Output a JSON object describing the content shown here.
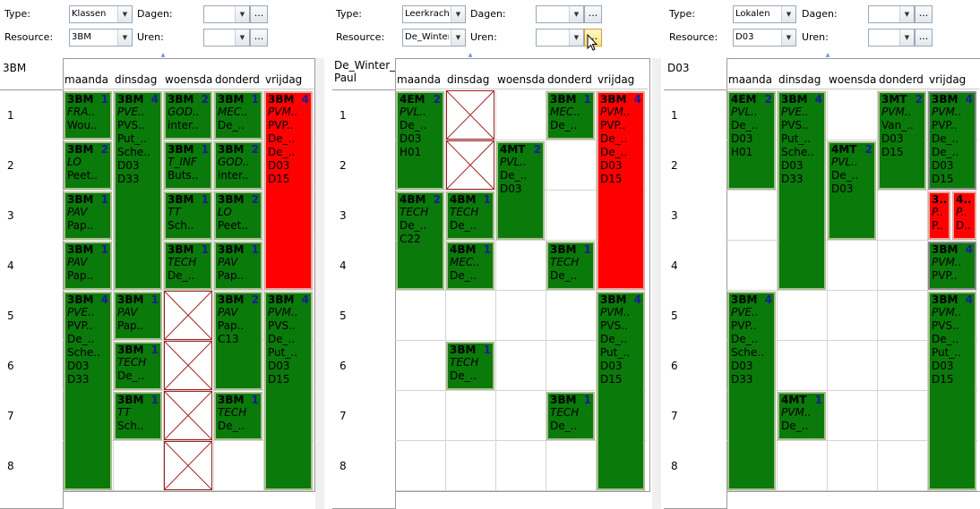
{
  "panels": [
    {
      "type_label": "Type:",
      "type_value": "Klassen",
      "dagen_label": "Dagen:",
      "resource_label": "Resource:",
      "resource_value": "3BM",
      "uren_label": "Uren:",
      "dots": "...",
      "title": "3BM",
      "days": [
        "maanda",
        "dinsdag",
        "woensda",
        "donderd",
        "vrijdag"
      ],
      "periods": [
        "1",
        "2",
        "3",
        "4",
        "5",
        "6",
        "7",
        "8"
      ],
      "cards": [
        {
          "t": "3BM",
          "n": "1",
          "l2": "FRA..",
          "l3": "Wou..",
          "l4": "",
          "l5": "",
          "color": "g"
        },
        {
          "t": "3BM",
          "n": "2",
          "l2": "LO",
          "l3": "Peet..",
          "l4": "",
          "l5": "",
          "color": "g"
        },
        {
          "t": "3BM",
          "n": "1",
          "l2": "PAV",
          "l3": "Pap..",
          "l4": "",
          "l5": "",
          "color": "g"
        },
        {
          "t": "3BM",
          "n": "1",
          "l2": "PAV",
          "l3": "Pap..",
          "l4": "",
          "l5": "",
          "color": "g"
        },
        {
          "t": "3BM",
          "n": "4",
          "l2": "PVE..",
          "l3": "PVP..",
          "l4": "De_..",
          "l5": "Sche..",
          "l6": "D03",
          "l7": "D33",
          "color": "g"
        },
        {
          "t": "3BM",
          "n": "4",
          "l2": "PVE..",
          "l3": "PVS..",
          "l4": "Put_..",
          "l5": "Sche..",
          "l6": "D03",
          "l7": "D33",
          "color": "g"
        },
        {
          "t": "3BM",
          "n": "1",
          "l2": "PAV",
          "l3": "Pap..",
          "l4": "",
          "l5": "",
          "color": "g"
        },
        {
          "t": "3BM",
          "n": "1",
          "l2": "TECH",
          "l3": "De_..",
          "l4": "",
          "l5": "",
          "color": "g"
        },
        {
          "t": "3BM",
          "n": "1",
          "l2": "TT",
          "l3": "Sch..",
          "l4": "",
          "l5": "",
          "color": "g"
        },
        {
          "t": "3BM",
          "n": "2",
          "l2": "GOD..",
          "l3": "inter..",
          "l4": "",
          "l5": "",
          "color": "g"
        },
        {
          "t": "3BM",
          "n": "1",
          "l2": "T_INF",
          "l3": "Buts..",
          "l4": "",
          "l5": "",
          "color": "g"
        },
        {
          "t": "3BM",
          "n": "1",
          "l2": "TT",
          "l3": "Sch..",
          "l4": "",
          "l5": "",
          "color": "g"
        },
        {
          "t": "3BM",
          "n": "1",
          "l2": "TECH",
          "l3": "De_..",
          "l4": "",
          "l5": "",
          "color": "g"
        },
        {
          "t": "3BM",
          "n": "1",
          "l2": "MEC..",
          "l3": "De_..",
          "l4": "",
          "l5": "",
          "color": "g"
        },
        {
          "t": "3BM",
          "n": "2",
          "l2": "GOD..",
          "l3": "inter..",
          "l4": "",
          "l5": "",
          "color": "g"
        },
        {
          "t": "3BM",
          "n": "2",
          "l2": "LO",
          "l3": "Peet..",
          "l4": "",
          "l5": "",
          "color": "g"
        },
        {
          "t": "3BM",
          "n": "1",
          "l2": "PAV",
          "l3": "Pap..",
          "l4": "",
          "l5": "",
          "color": "g"
        },
        {
          "t": "3BM",
          "n": "2",
          "l2": "PAV",
          "l3": "Pap..",
          "l4": "C13",
          "l5": "",
          "color": "g"
        },
        {
          "t": "3BM",
          "n": "1",
          "l2": "TECH",
          "l3": "De_..",
          "l4": "",
          "l5": "",
          "color": "g"
        },
        {
          "t": "3BM",
          "n": "4",
          "l2": "PVM..",
          "l3": "PVP..",
          "l4": "De_..",
          "l5": "De_..",
          "l6": "D03",
          "l7": "D15",
          "color": "r"
        },
        {
          "t": "3BM",
          "n": "4",
          "l2": "PVM..",
          "l3": "PVS..",
          "l4": "De_..",
          "l5": "Put_..",
          "l6": "D03",
          "l7": "D15",
          "color": "g"
        }
      ]
    },
    {
      "type_label": "Type:",
      "type_value": "Leerkracht",
      "dagen_label": "Dagen:",
      "resource_label": "Resource:",
      "resource_value": "De_Winter",
      "uren_label": "Uren:",
      "dots": "...",
      "title": "De_Winter_\nPaul",
      "days": [
        "maanda",
        "dinsdag",
        "woensda",
        "donderd",
        "vrijdag"
      ],
      "periods": [
        "1",
        "2",
        "3",
        "4",
        "5",
        "6",
        "7",
        "8"
      ],
      "cards": [
        {
          "t": "4EM",
          "n": "2",
          "l2": "PVL..",
          "l3": "De_..",
          "l4": "D03",
          "l5": "H01",
          "color": "g"
        },
        {
          "t": "4BM",
          "n": "2",
          "l2": "TECH",
          "l3": "De_..",
          "l4": "C22",
          "l5": "",
          "color": "g"
        },
        {
          "t": "4BM",
          "n": "1",
          "l2": "TECH",
          "l3": "De_..",
          "l4": "",
          "l5": "",
          "color": "g"
        },
        {
          "t": "4BM",
          "n": "1",
          "l2": "MEC..",
          "l3": "De_..",
          "l4": "",
          "l5": "",
          "color": "g"
        },
        {
          "t": "3BM",
          "n": "1",
          "l2": "TECH",
          "l3": "De_..",
          "l4": "",
          "l5": "",
          "color": "g"
        },
        {
          "t": "4MT",
          "n": "2",
          "l2": "PVL..",
          "l3": "De_..",
          "l4": "D03",
          "l5": "",
          "color": "g"
        },
        {
          "t": "3BM",
          "n": "1",
          "l2": "MEC..",
          "l3": "De_..",
          "l4": "",
          "l5": "",
          "color": "g"
        },
        {
          "t": "3BM",
          "n": "1",
          "l2": "TECH",
          "l3": "De_..",
          "l4": "",
          "l5": "",
          "color": "g"
        },
        {
          "t": "3BM",
          "n": "1",
          "l2": "TECH",
          "l3": "De_..",
          "l4": "",
          "l5": "",
          "color": "g"
        },
        {
          "t": "3BM",
          "n": "4",
          "l2": "PVM..",
          "l3": "PVP..",
          "l4": "De_..",
          "l5": "De_..",
          "l6": "D03",
          "l7": "D15",
          "color": "r"
        },
        {
          "t": "3BM",
          "n": "4",
          "l2": "PVM..",
          "l3": "PVS..",
          "l4": "De_..",
          "l5": "Put_..",
          "l6": "D03",
          "l7": "D15",
          "color": "g"
        }
      ]
    },
    {
      "type_label": "Type:",
      "type_value": "Lokalen",
      "dagen_label": "Dagen:",
      "resource_label": "Resource:",
      "resource_value": "D03",
      "uren_label": "Uren:",
      "dots": "...",
      "title": "D03",
      "days": [
        "maanda",
        "dinsdag",
        "woensda",
        "donderd",
        "vrijdag"
      ],
      "periods": [
        "1",
        "2",
        "3",
        "4",
        "5",
        "6",
        "7",
        "8"
      ],
      "cards": [
        {
          "t": "4EM",
          "n": "2",
          "l2": "PVL..",
          "l3": "De_..",
          "l4": "D03",
          "l5": "H01",
          "color": "g"
        },
        {
          "t": "3BM",
          "n": "4",
          "l2": "PVE..",
          "l3": "PVP..",
          "l4": "De_..",
          "l5": "Sche..",
          "l6": "D03",
          "l7": "D33",
          "color": "g"
        },
        {
          "t": "3BM",
          "n": "4",
          "l2": "PVE..",
          "l3": "PVS..",
          "l4": "Put_..",
          "l5": "Sche..",
          "l6": "D03",
          "l7": "D33",
          "color": "g"
        },
        {
          "t": "4MT",
          "n": "1",
          "l2": "PVM..",
          "l3": "De_..",
          "l4": "",
          "l5": "",
          "color": "g"
        },
        {
          "t": "4MT",
          "n": "2",
          "l2": "PVL..",
          "l3": "De_..",
          "l4": "D03",
          "l5": "",
          "color": "g"
        },
        {
          "t": "3MT",
          "n": "2",
          "l2": "PVM..",
          "l3": "Van_..",
          "l4": "D03",
          "l5": "D15",
          "color": "g"
        },
        {
          "t": "3BM",
          "n": "4",
          "l2": "PVM..",
          "l3": "PVP..",
          "l4": "De_..",
          "l5": "De_..",
          "l6": "D03",
          "l7": "D15",
          "color": "g"
        },
        {
          "t": "3..",
          "n": "",
          "l2": "P..",
          "l3": "P..",
          "l4": "",
          "l5": "",
          "color": "r"
        },
        {
          "t": "4..",
          "n": "",
          "l2": "P..",
          "l3": "D..",
          "l4": "",
          "l5": "",
          "color": "r"
        },
        {
          "t": "3BM",
          "n": "4",
          "l2": "PVM..",
          "l3": "PVP..",
          "l4": "",
          "l5": "",
          "color": "g"
        },
        {
          "t": "3BM",
          "n": "4",
          "l2": "PVM..",
          "l3": "PVS..",
          "l4": "De_..",
          "l5": "Put_..",
          "l6": "D03",
          "l7": "D15",
          "color": "g"
        }
      ]
    }
  ]
}
